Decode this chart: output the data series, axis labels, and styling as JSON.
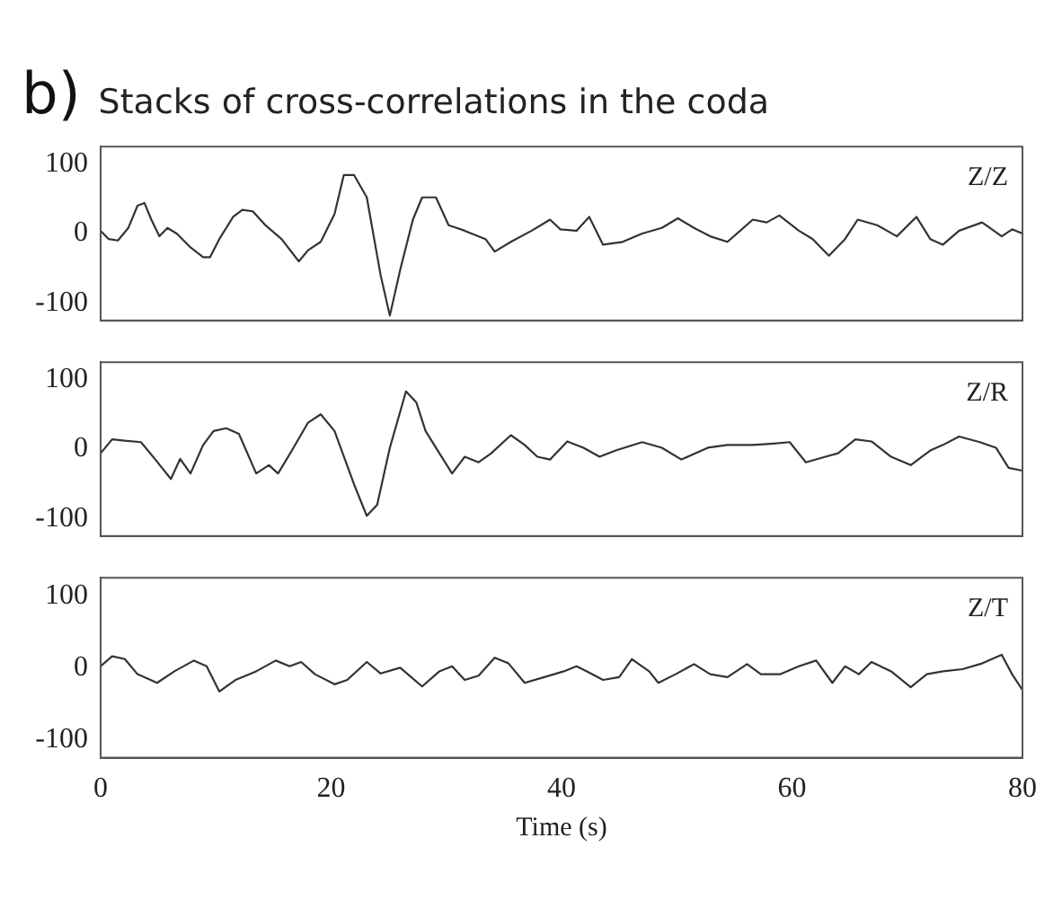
{
  "chart_data": [
    {
      "type": "line",
      "title": "Stacks of cross-correlations in the coda",
      "annotations": [
        "b)",
        "Z/Z"
      ],
      "tick_labels": "y",
      "legend": false,
      "grid": false,
      "xlim": [
        0,
        80
      ],
      "xticks": [
        0,
        20,
        40,
        60,
        80
      ],
      "ylim": [
        -125,
        125
      ],
      "yticks": [
        -100,
        0,
        100
      ],
      "series": [
        {
          "color": "#333333",
          "x": [
            0,
            0.7,
            1.5,
            2.4,
            3.2,
            3.8,
            4.4,
            5.1,
            5.8,
            6.6,
            7.8,
            8.9,
            9.5,
            10.3,
            11.5,
            12.3,
            13.2,
            14.3,
            15.7,
            17.2,
            18,
            19.1,
            20.3,
            21.1,
            22,
            23.1,
            24.3,
            25.1,
            26,
            27.1,
            27.9,
            29.1,
            30.2,
            31.6,
            33.4,
            34.2,
            35.6,
            37.4,
            39,
            39.9,
            41.3,
            42.4,
            43.6,
            45.3,
            47,
            48.7,
            50.1,
            51.5,
            52.9,
            54.4,
            56.6,
            57.8,
            58.9,
            60.6,
            61.8,
            63.2,
            64.6,
            65.7,
            67.4,
            69.1,
            70.8,
            72,
            73.1,
            74.5,
            76.5,
            78.2,
            79.1,
            80
          ],
          "values": [
            4,
            -8,
            -10,
            8,
            40,
            44,
            20,
            -4,
            8,
            0,
            -20,
            -34,
            -34,
            -8,
            24,
            34,
            32,
            12,
            -8,
            -40,
            -24,
            -12,
            28,
            84,
            84,
            52,
            -60,
            -118,
            -52,
            20,
            52,
            52,
            12,
            4,
            -8,
            -26,
            -12,
            4,
            20,
            6,
            4,
            24,
            -16,
            -12,
            0,
            8,
            22,
            8,
            -4,
            -12,
            20,
            16,
            26,
            4,
            -8,
            -32,
            -8,
            20,
            12,
            -4,
            24,
            -8,
            -16,
            4,
            16,
            -4,
            6,
            0
          ]
        }
      ]
    },
    {
      "type": "line",
      "annotations": [
        "Z/R"
      ],
      "tick_labels": "y",
      "legend": false,
      "grid": false,
      "xlim": [
        0,
        80
      ],
      "xticks": [
        0,
        20,
        40,
        60,
        80
      ],
      "ylim": [
        -125,
        125
      ],
      "yticks": [
        -100,
        0,
        100
      ],
      "series": [
        {
          "color": "#333333",
          "x": [
            0,
            1,
            2.1,
            3.5,
            4.7,
            6.1,
            6.9,
            7.8,
            8.9,
            9.8,
            10.9,
            12,
            13.5,
            14.6,
            15.4,
            16.6,
            18,
            19.1,
            20.3,
            22,
            23.1,
            24,
            25.1,
            26.5,
            27.4,
            28.2,
            29.4,
            30.5,
            31.6,
            32.8,
            33.9,
            35.6,
            36.8,
            37.9,
            39,
            40.5,
            41.9,
            43.3,
            44.7,
            47,
            48.7,
            50.4,
            52.7,
            54.4,
            56.6,
            58.4,
            59.8,
            61.2,
            62.9,
            64,
            65.5,
            66.9,
            68.6,
            70.3,
            72,
            73.1,
            74.5,
            76.3,
            77.7,
            78.8,
            80
          ],
          "values": [
            -6,
            14,
            12,
            10,
            -14,
            -43,
            -14,
            -35,
            6,
            26,
            30,
            22,
            -35,
            -23,
            -35,
            -2,
            38,
            50,
            26,
            -51,
            -96,
            -80,
            2,
            83,
            67,
            26,
            -6,
            -35,
            -11,
            -19,
            -6,
            20,
            6,
            -11,
            -15,
            11,
            2,
            -11,
            -2,
            10,
            2,
            -15,
            2,
            6,
            6,
            8,
            10,
            -19,
            -11,
            -6,
            14,
            11,
            -11,
            -23,
            -2,
            6,
            18,
            10,
            2,
            -27,
            -31
          ]
        }
      ]
    },
    {
      "type": "line",
      "annotations": [
        "Z/T"
      ],
      "xlabel": "Time (s)",
      "legend": false,
      "grid": false,
      "xlim": [
        0,
        80
      ],
      "xticks": [
        0,
        20,
        40,
        60,
        80
      ],
      "ylim": [
        -125,
        125
      ],
      "yticks": [
        -100,
        0,
        100
      ],
      "series": [
        {
          "color": "#333333",
          "x": [
            0,
            1,
            2.1,
            3.2,
            4.9,
            6.4,
            8.1,
            9.2,
            10.3,
            11.7,
            13.5,
            15.2,
            16.4,
            17.4,
            18.6,
            20.3,
            21.4,
            23.1,
            24.3,
            26,
            27.9,
            29.4,
            30.5,
            31.6,
            32.8,
            34.2,
            35.4,
            36.8,
            38.5,
            40.2,
            41.3,
            42.2,
            43.6,
            45,
            46.1,
            47.6,
            48.4,
            49.9,
            51.5,
            52.9,
            54.4,
            56.1,
            57.3,
            59,
            60.6,
            62.1,
            63.5,
            64.6,
            65.8,
            66.9,
            68.6,
            70.3,
            71.7,
            73.1,
            74.8,
            76.5,
            78.2,
            79.1,
            80
          ],
          "values": [
            2,
            16,
            12,
            -9,
            -21,
            -5,
            10,
            2,
            -33,
            -17,
            -5,
            10,
            2,
            8,
            -9,
            -23,
            -17,
            8,
            -8,
            0,
            -26,
            -5,
            2,
            -17,
            -11,
            14,
            6,
            -21,
            -13,
            -5,
            2,
            -5,
            -17,
            -13,
            12,
            -5,
            -21,
            -9,
            5,
            -9,
            -13,
            5,
            -9,
            -9,
            2,
            10,
            -21,
            2,
            -9,
            8,
            -5,
            -27,
            -9,
            -5,
            -2,
            6,
            18,
            -9,
            -31
          ]
        }
      ]
    }
  ]
}
